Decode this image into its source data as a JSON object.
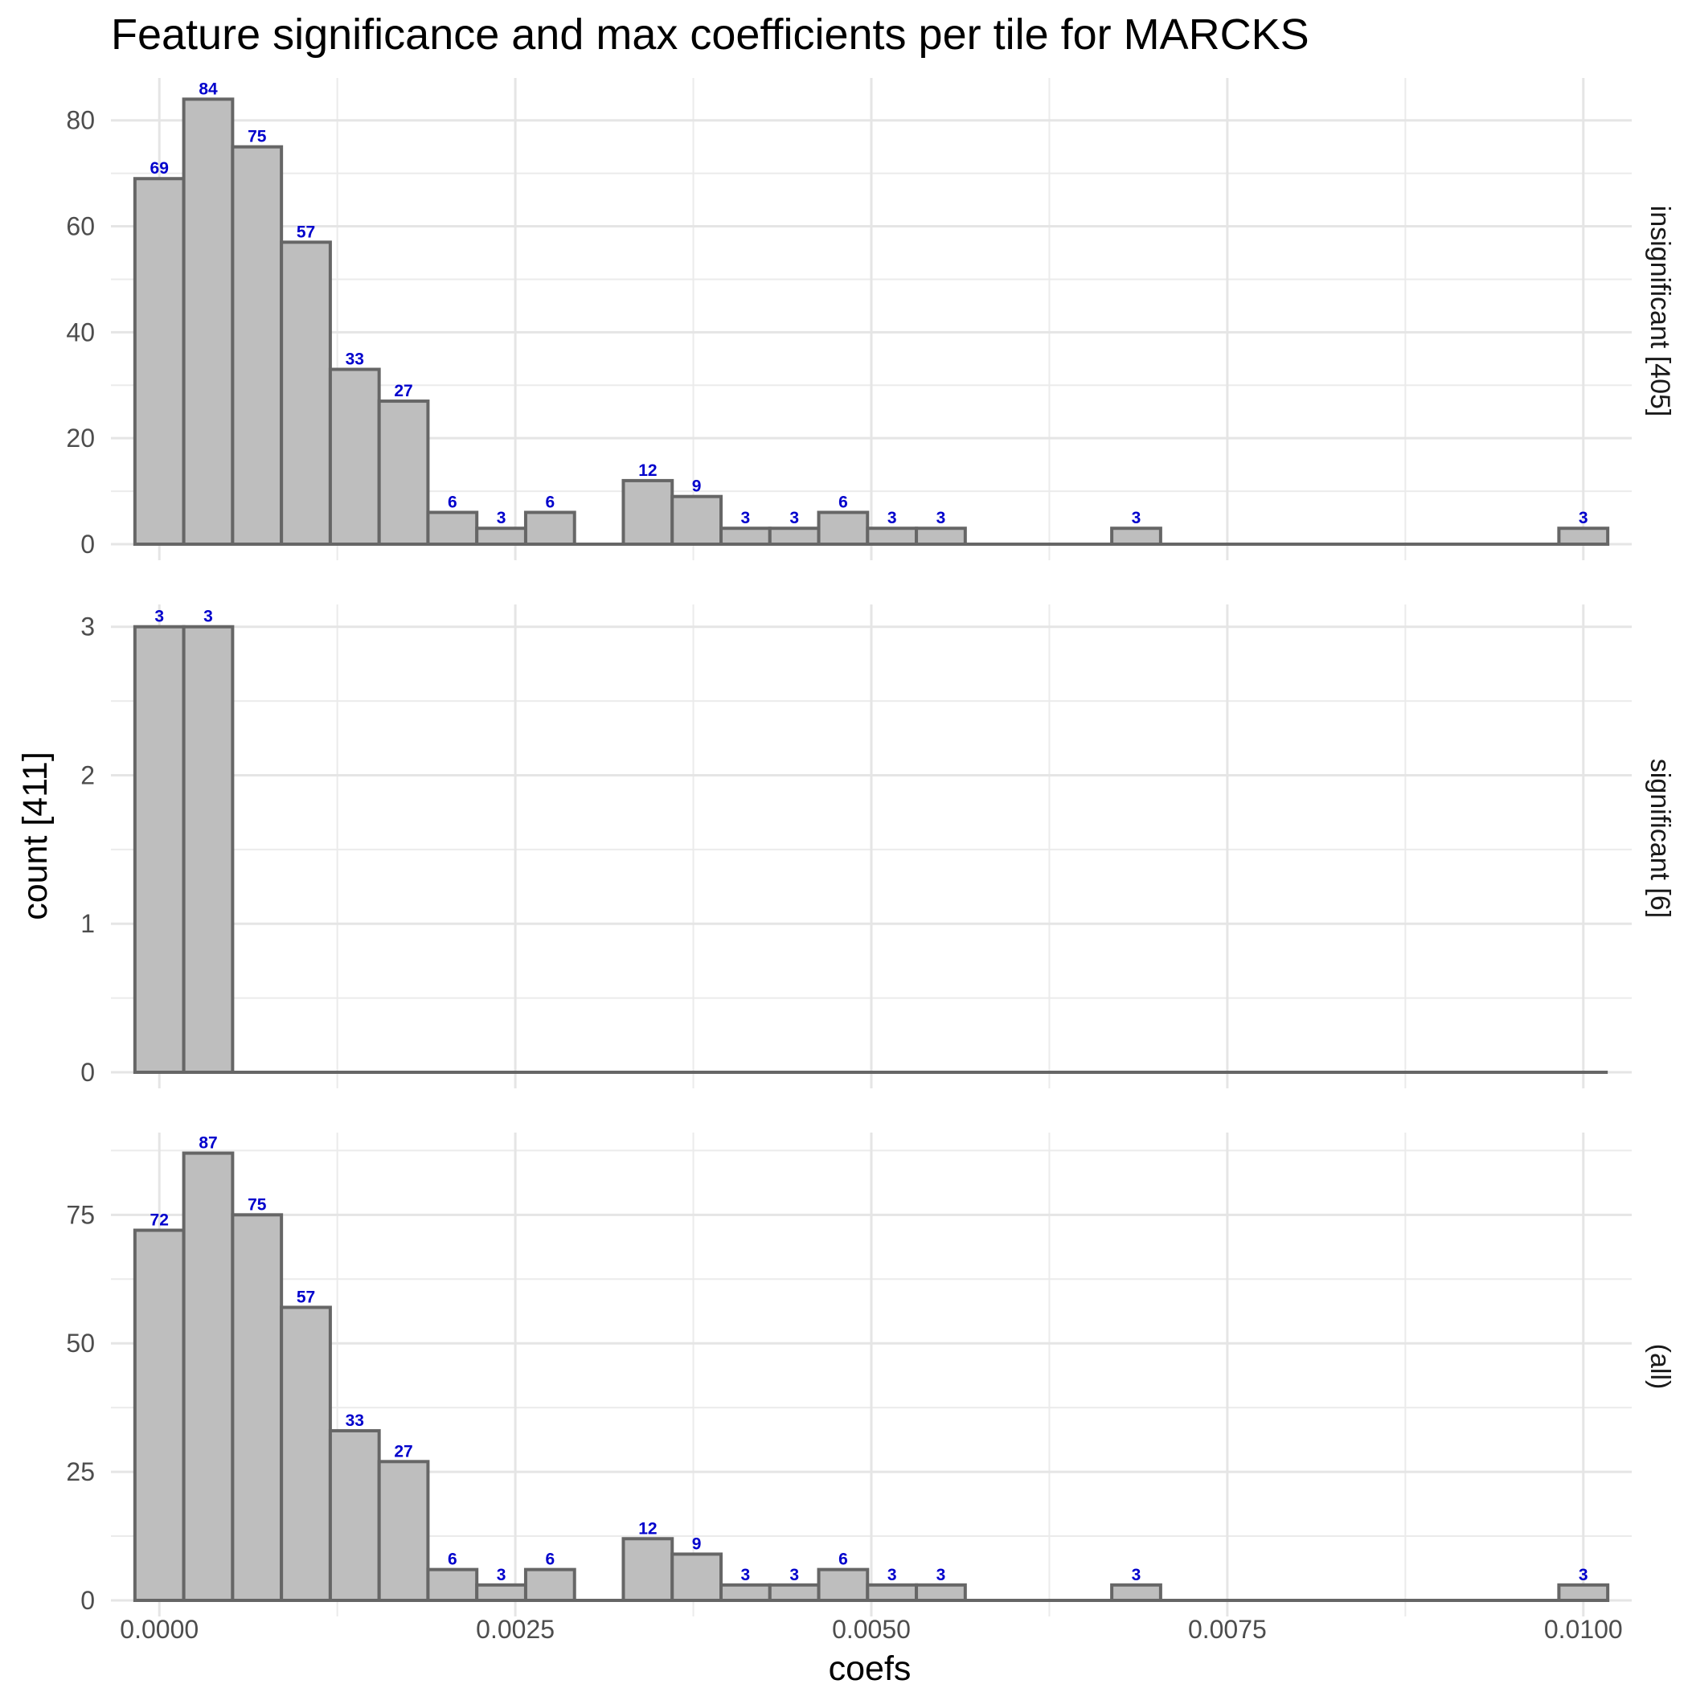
{
  "title": "Feature significance and max coefficients per tile for MARCKS",
  "chart_data": {
    "type": "bar",
    "subtype": "faceted histogram",
    "title": "Feature significance and max coefficients per tile for MARCKS",
    "xlabel": "coefs",
    "ylabel": "count [411]",
    "xlim": [
      -0.00034,
      0.01034
    ],
    "x_ticks": [
      "0.0000",
      "0.0025",
      "0.0050",
      "0.0075",
      "0.0100"
    ],
    "x_tick_values": [
      0,
      0.0025,
      0.005,
      0.0075,
      0.01
    ],
    "bin_width": 0.000343,
    "bin_centers": [
      0.0,
      0.000343,
      0.000686,
      0.001029,
      0.001372,
      0.001715,
      0.002058,
      0.002401,
      0.002744,
      0.003087,
      0.00343,
      0.003773,
      0.004116,
      0.004459,
      0.004802,
      0.005145,
      0.005488,
      0.005831,
      0.006174,
      0.006517,
      0.00686,
      0.007203,
      0.007546,
      0.007889,
      0.008232,
      0.008575,
      0.008918,
      0.009261,
      0.009604,
      0.01
    ],
    "grid": true,
    "bar_fill": "#bebebe",
    "bar_stroke": "#666666",
    "label_color": "#0000cc",
    "facets": [
      {
        "strip": "insignificant [405]",
        "ylim": [
          0,
          88
        ],
        "y_ticks": [
          "0",
          "20",
          "40",
          "60",
          "80"
        ],
        "y_tick_values": [
          0,
          20,
          40,
          60,
          80
        ],
        "values": [
          69,
          84,
          75,
          57,
          33,
          27,
          6,
          3,
          6,
          0,
          12,
          9,
          3,
          3,
          6,
          3,
          3,
          0,
          0,
          0,
          3,
          0,
          0,
          0,
          0,
          0,
          0,
          0,
          0,
          3
        ]
      },
      {
        "strip": "significant [6]",
        "ylim": [
          0,
          3.15
        ],
        "y_ticks": [
          "0",
          "1",
          "2",
          "3"
        ],
        "y_tick_values": [
          0,
          1,
          2,
          3
        ],
        "values": [
          3,
          3,
          0,
          0,
          0,
          0,
          0,
          0,
          0,
          0,
          0,
          0,
          0,
          0,
          0,
          0,
          0,
          0,
          0,
          0,
          0,
          0,
          0,
          0,
          0,
          0,
          0,
          0,
          0,
          0
        ]
      },
      {
        "strip": "(all)",
        "ylim": [
          0,
          91
        ],
        "y_ticks": [
          "0",
          "25",
          "50",
          "75"
        ],
        "y_tick_values": [
          0,
          25,
          50,
          75
        ],
        "values": [
          72,
          87,
          75,
          57,
          33,
          27,
          6,
          3,
          6,
          0,
          12,
          9,
          3,
          3,
          6,
          3,
          3,
          0,
          0,
          0,
          3,
          0,
          0,
          0,
          0,
          0,
          0,
          0,
          0,
          3
        ]
      }
    ]
  }
}
